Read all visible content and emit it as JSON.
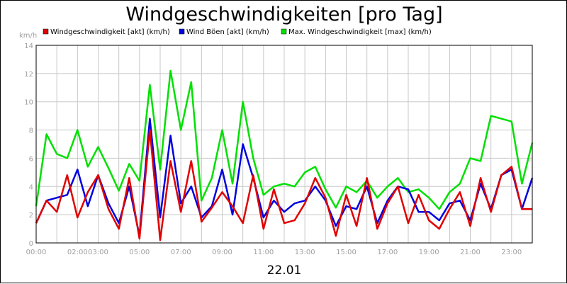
{
  "chart_data": {
    "type": "line",
    "title": "Windgeschwindigkeiten [pro Tag]",
    "ylabel": "km/h",
    "xlabel": "22.01",
    "ylim": [
      0,
      14
    ],
    "xlim": [
      0,
      24
    ],
    "y_ticks": [
      "0",
      "2",
      "4",
      "6",
      "8",
      "10",
      "12",
      "14"
    ],
    "x_ticks": [
      {
        "t": 0,
        "label": "00:00"
      },
      {
        "t": 2,
        "label": "02:00"
      },
      {
        "t": 3,
        "label": "03:00"
      },
      {
        "t": 5,
        "label": "05:00"
      },
      {
        "t": 7,
        "label": "07:00"
      },
      {
        "t": 9,
        "label": "09:00"
      },
      {
        "t": 11,
        "label": "11:00"
      },
      {
        "t": 13,
        "label": "13:00"
      },
      {
        "t": 15,
        "label": "15:00"
      },
      {
        "t": 17,
        "label": "17:00"
      },
      {
        "t": 19,
        "label": "19:00"
      },
      {
        "t": 21,
        "label": "21:00"
      },
      {
        "t": 23,
        "label": "23:00"
      }
    ],
    "grid": true,
    "legend_position": "top",
    "series": [
      {
        "name": "Windgeschwindigkeit [akt] (km/h)",
        "color": "#e00000",
        "x": [
          0,
          0.5,
          1,
          1.5,
          2,
          2.5,
          3,
          3.5,
          4,
          4.5,
          5,
          5.5,
          6,
          6.5,
          7,
          7.5,
          8,
          8.5,
          9,
          9.5,
          10,
          10.5,
          11,
          11.5,
          12,
          12.5,
          13,
          13.5,
          14,
          14.5,
          15,
          15.5,
          16,
          16.5,
          17,
          17.5,
          18,
          18.5,
          19,
          19.5,
          20,
          20.5,
          21,
          21.5,
          22,
          22.5,
          23,
          23.5,
          24
        ],
        "values": [
          1.4,
          3.0,
          2.2,
          4.8,
          1.8,
          3.6,
          4.8,
          2.4,
          1.0,
          4.6,
          0.3,
          8.0,
          0.2,
          5.8,
          2.2,
          5.8,
          1.5,
          2.5,
          3.6,
          2.6,
          1.4,
          4.8,
          1.0,
          3.8,
          1.4,
          1.6,
          2.8,
          4.6,
          3.2,
          0.5,
          3.4,
          1.2,
          4.6,
          1.0,
          2.8,
          4.0,
          1.4,
          3.4,
          1.6,
          1.0,
          2.4,
          3.6,
          1.2,
          4.6,
          2.2,
          4.8,
          5.4,
          2.4,
          2.4
        ]
      },
      {
        "name": "Wind Böen [akt] (km/h)",
        "color": "#0000e0",
        "x": [
          0,
          0.5,
          1,
          1.5,
          2,
          2.5,
          3,
          3.5,
          4,
          4.5,
          5,
          5.5,
          6,
          6.5,
          7,
          7.5,
          8,
          8.5,
          9,
          9.5,
          10,
          10.5,
          11,
          11.5,
          12,
          12.5,
          13,
          13.5,
          14,
          14.5,
          15,
          15.5,
          16,
          16.5,
          17,
          17.5,
          18,
          18.5,
          19,
          19.5,
          20,
          20.5,
          21,
          21.5,
          22,
          22.5,
          23,
          23.5,
          24
        ],
        "values": [
          1.4,
          3.0,
          3.2,
          3.4,
          5.2,
          2.6,
          4.8,
          2.8,
          1.4,
          4.0,
          0.5,
          8.8,
          1.8,
          7.6,
          2.8,
          4.0,
          1.8,
          2.6,
          5.2,
          2.0,
          7.0,
          4.6,
          1.8,
          3.0,
          2.2,
          2.8,
          3.0,
          4.0,
          3.0,
          1.2,
          2.6,
          2.4,
          4.0,
          1.4,
          3.0,
          4.0,
          3.8,
          2.2,
          2.2,
          1.6,
          2.8,
          3.0,
          1.6,
          4.2,
          2.4,
          4.8,
          5.2,
          2.4,
          4.6
        ]
      },
      {
        "name": "Max. Windgeschwindigkeit [max] (km/h)",
        "color": "#00e000",
        "x": [
          0,
          0.5,
          1,
          1.5,
          2,
          2.5,
          3,
          3.5,
          4,
          4.5,
          5,
          5.5,
          6,
          6.5,
          7,
          7.5,
          8,
          8.5,
          9,
          9.5,
          10,
          10.5,
          11,
          11.5,
          12,
          12.5,
          13,
          13.5,
          14,
          14.5,
          15,
          15.5,
          16,
          16.5,
          17,
          17.5,
          18,
          18.5,
          19,
          19.5,
          20,
          20.5,
          21,
          21.5,
          22,
          22.5,
          23,
          23.5,
          24
        ],
        "values": [
          2.6,
          7.7,
          6.3,
          6.0,
          8.0,
          5.4,
          6.8,
          5.3,
          3.7,
          5.6,
          4.4,
          11.2,
          5.2,
          12.2,
          8.0,
          11.4,
          3.0,
          4.6,
          8.0,
          4.2,
          10.0,
          6.0,
          3.4,
          4.0,
          4.2,
          4.0,
          5.0,
          5.4,
          3.8,
          2.5,
          4.0,
          3.6,
          4.4,
          3.2,
          4.0,
          4.6,
          3.6,
          3.8,
          3.2,
          2.4,
          3.6,
          4.2,
          6.0,
          5.8,
          9.0,
          8.8,
          8.6,
          4.2,
          7.1
        ]
      }
    ]
  }
}
